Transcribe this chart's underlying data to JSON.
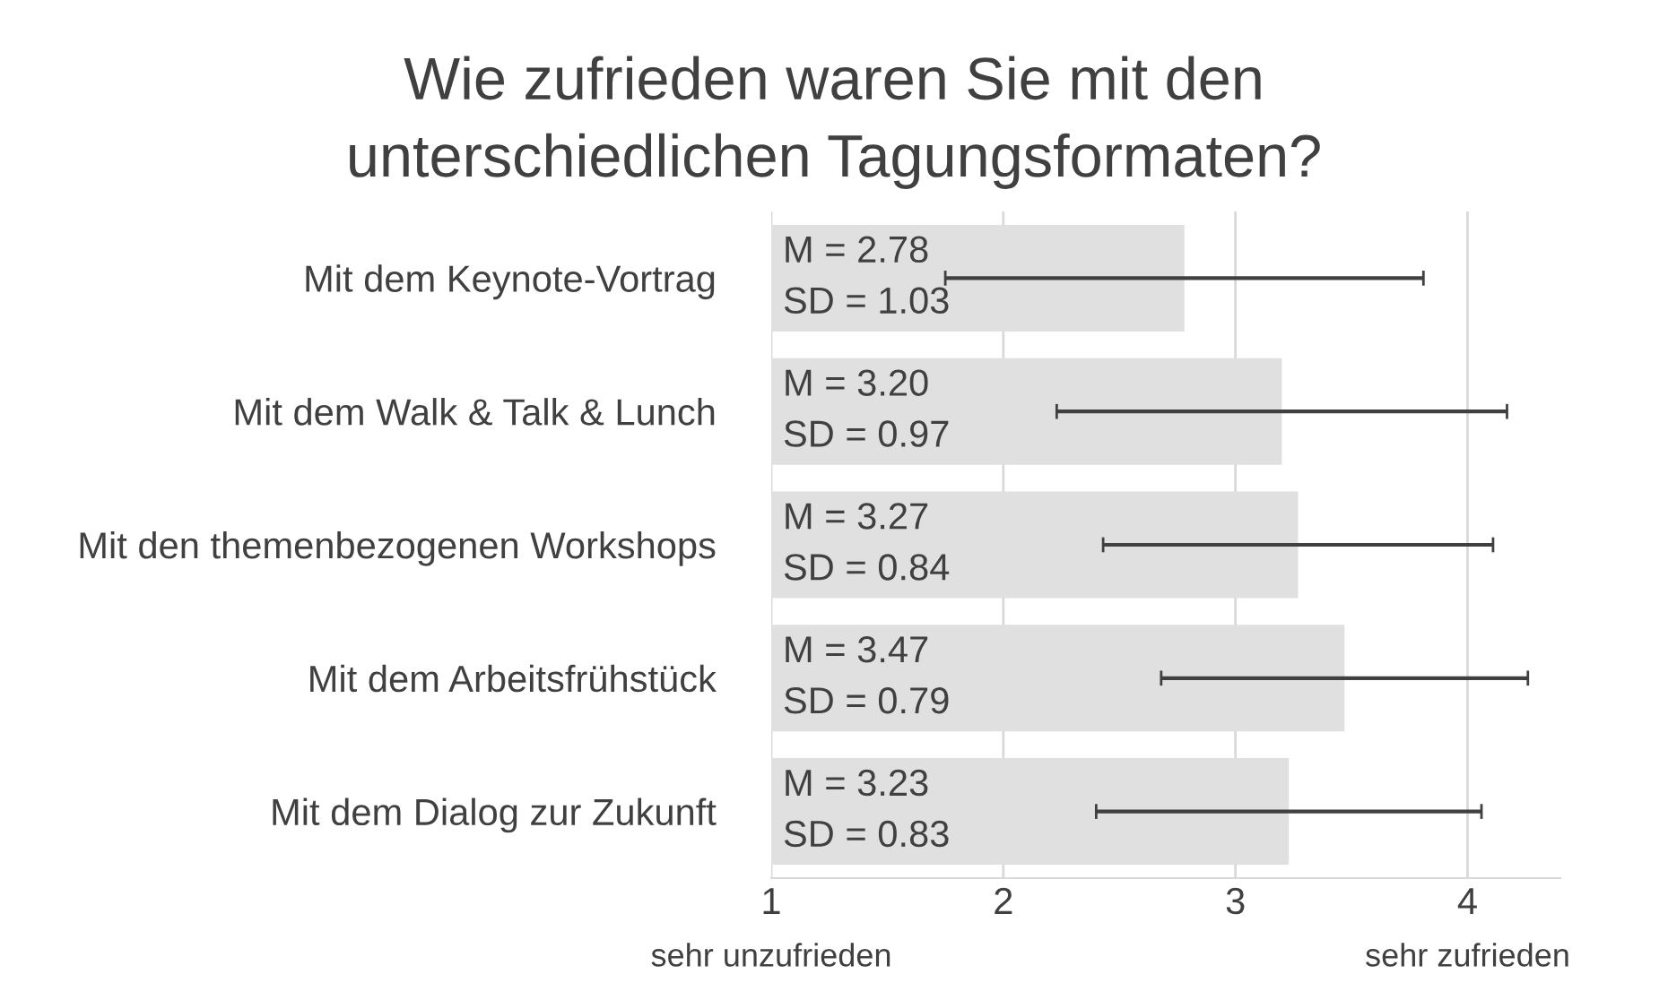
{
  "chart_data": {
    "type": "bar",
    "orientation": "horizontal",
    "title": "Wie zufrieden waren Sie mit den\nunterschiedlichen Tagungsformaten?",
    "categories": [
      "Mit dem Keynote-Vortrag",
      "Mit dem Walk & Talk & Lunch",
      "Mit den themenbezogenen Workshops",
      "Mit dem Arbeitsfrühstück",
      "Mit dem Dialog zur Zukunft"
    ],
    "values": [
      2.78,
      3.2,
      3.27,
      3.47,
      3.23
    ],
    "errors": [
      1.03,
      0.97,
      0.84,
      0.79,
      0.83
    ],
    "value_labels": [
      "M = 2.78\nSD = 1.03",
      "M = 3.20\nSD = 0.97",
      "M = 3.27\nSD = 0.84",
      "M = 3.47\nSD = 0.79",
      "M = 3.23\nSD = 0.83"
    ],
    "color": "#e0e0e0",
    "xlim": [
      1,
      4.4
    ],
    "xticks": [
      1,
      2,
      3,
      4
    ],
    "grid": "x",
    "annotations": [
      "sehr unzufrieden",
      "sehr zufrieden"
    ]
  }
}
